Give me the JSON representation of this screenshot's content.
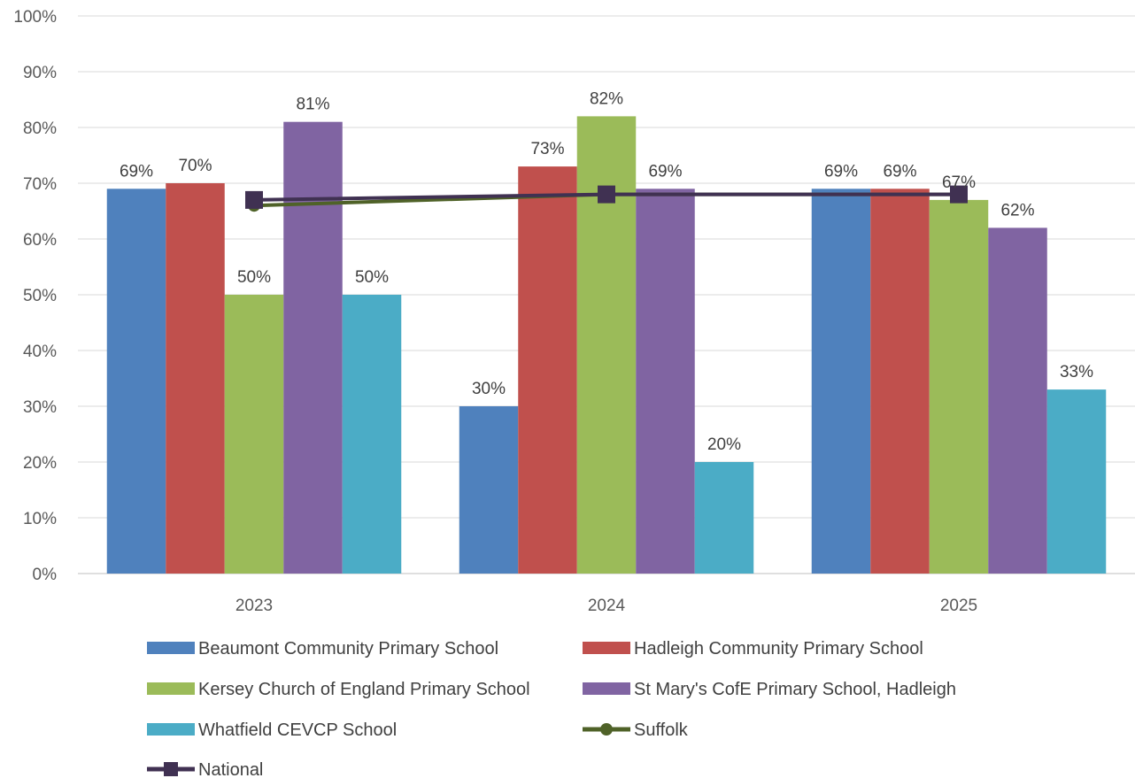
{
  "chart_data": {
    "type": "bar",
    "title": "",
    "xlabel": "",
    "ylabel": "",
    "categories": [
      "2023",
      "2024",
      "2025"
    ],
    "ylim": [
      0,
      100
    ],
    "yticks": [
      0,
      10,
      20,
      30,
      40,
      50,
      60,
      70,
      80,
      90,
      100
    ],
    "ytick_labels": [
      "0%",
      "10%",
      "20%",
      "30%",
      "40%",
      "50%",
      "60%",
      "70%",
      "80%",
      "90%",
      "100%"
    ],
    "grid": true,
    "legend_position": "bottom",
    "series": [
      {
        "name": "Beaumont Community Primary School",
        "kind": "bar",
        "color": "#4F81BD",
        "values": [
          69,
          30,
          69
        ],
        "labels": [
          "69%",
          "30%",
          "69%"
        ]
      },
      {
        "name": "Hadleigh Community Primary School",
        "kind": "bar",
        "color": "#C0504D",
        "values": [
          70,
          73,
          69
        ],
        "labels": [
          "70%",
          "73%",
          "69%"
        ]
      },
      {
        "name": "Kersey Church of England Primary School",
        "kind": "bar",
        "color": "#9BBB59",
        "values": [
          50,
          82,
          67
        ],
        "labels": [
          "50%",
          "82%",
          "67%"
        ]
      },
      {
        "name": "St Mary's CofE Primary School, Hadleigh",
        "kind": "bar",
        "color": "#8064A2",
        "values": [
          81,
          69,
          62
        ],
        "labels": [
          "81%",
          "69%",
          "62%"
        ]
      },
      {
        "name": "Whatfield CEVCP School",
        "kind": "bar",
        "color": "#4BACC6",
        "values": [
          50,
          20,
          33
        ],
        "labels": [
          "50%",
          "20%",
          "33%"
        ]
      },
      {
        "name": "Suffolk",
        "kind": "line",
        "marker": "circle",
        "color": "#4F6228",
        "values": [
          66,
          68,
          68
        ]
      },
      {
        "name": "National",
        "kind": "line",
        "marker": "square",
        "color": "#403152",
        "values": [
          67,
          68,
          68
        ]
      }
    ]
  }
}
